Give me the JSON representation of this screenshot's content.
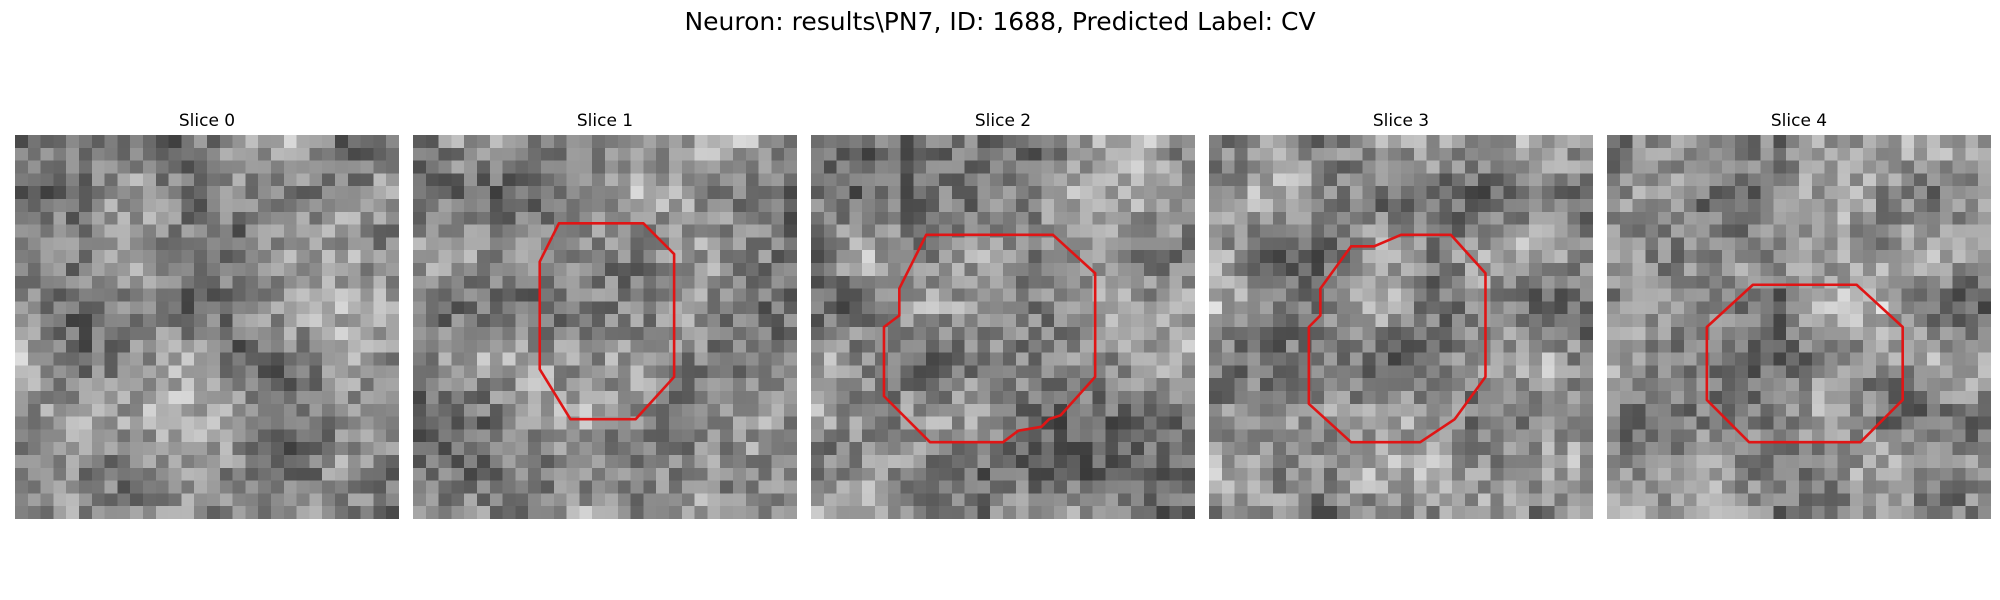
{
  "figure": {
    "title": "Neuron: results\\PN7, ID: 1688, Predicted Label: CV"
  },
  "colors": {
    "contour": "#e01515",
    "background": "#ffffff"
  },
  "panels": [
    {
      "title": "Slice 0",
      "contour": []
    },
    {
      "title": "Slice 1",
      "contour": [
        [
          0.38,
          0.23
        ],
        [
          0.6,
          0.23
        ],
        [
          0.68,
          0.31
        ],
        [
          0.68,
          0.63
        ],
        [
          0.58,
          0.74
        ],
        [
          0.41,
          0.74
        ],
        [
          0.33,
          0.61
        ],
        [
          0.33,
          0.33
        ]
      ]
    },
    {
      "title": "Slice 2",
      "contour": [
        [
          0.3,
          0.26
        ],
        [
          0.63,
          0.26
        ],
        [
          0.74,
          0.36
        ],
        [
          0.74,
          0.63
        ],
        [
          0.65,
          0.73
        ],
        [
          0.62,
          0.74
        ],
        [
          0.6,
          0.76
        ],
        [
          0.54,
          0.77
        ],
        [
          0.5,
          0.8
        ],
        [
          0.31,
          0.8
        ],
        [
          0.19,
          0.68
        ],
        [
          0.19,
          0.5
        ],
        [
          0.23,
          0.47
        ],
        [
          0.23,
          0.4
        ]
      ]
    },
    {
      "title": "Slice 3",
      "contour": [
        [
          0.5,
          0.26
        ],
        [
          0.63,
          0.26
        ],
        [
          0.72,
          0.36
        ],
        [
          0.72,
          0.63
        ],
        [
          0.64,
          0.74
        ],
        [
          0.55,
          0.8
        ],
        [
          0.37,
          0.8
        ],
        [
          0.26,
          0.7
        ],
        [
          0.26,
          0.5
        ],
        [
          0.29,
          0.47
        ],
        [
          0.29,
          0.4
        ],
        [
          0.37,
          0.29
        ],
        [
          0.43,
          0.29
        ]
      ]
    },
    {
      "title": "Slice 4",
      "contour": [
        [
          0.38,
          0.39
        ],
        [
          0.65,
          0.39
        ],
        [
          0.77,
          0.5
        ],
        [
          0.77,
          0.69
        ],
        [
          0.66,
          0.8
        ],
        [
          0.37,
          0.8
        ],
        [
          0.26,
          0.69
        ],
        [
          0.26,
          0.5
        ]
      ]
    }
  ]
}
